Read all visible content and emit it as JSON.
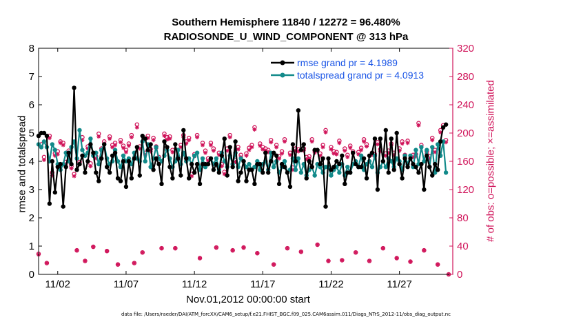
{
  "titles": {
    "line1": "Southern Hemisphere 11840 / 12272 = 96.480%",
    "line2": "RADIOSONDE_U_WIND_COMPONENT @ 313 hPa"
  },
  "axes": {
    "xlabel": "Nov.01,2012 00:00:00 start",
    "ylabel_left": "rmse and totalspread",
    "ylabel_right": "# of obs: o=possible; ×=assimilated",
    "left_ticks": [
      "0",
      "1",
      "2",
      "3",
      "4",
      "5",
      "6",
      "7",
      "8"
    ],
    "right_ticks": [
      "0",
      "40",
      "80",
      "120",
      "160",
      "200",
      "240",
      "280",
      "320"
    ],
    "x_ticks": [
      "11/02",
      "11/07",
      "11/12",
      "11/17",
      "11/22",
      "11/27"
    ]
  },
  "footer": "data file: /Users/raeder/DAI/ATM_forcXX/CAM6_setup/f.e21.FHIST_BGC.f09_025.CAM6assim.011/Diags_NTrS_2012-11/obs_diag_output.nc",
  "colors": {
    "rmse": "#000000",
    "spread": "#128a8a",
    "obs": "#d0145a",
    "legend_text": "#1a55e6"
  },
  "chart_data": {
    "type": "line",
    "title": "Southern Hemisphere 11840 / 12272 = 96.480% RADIOSONDE_U_WIND_COMPONENT @ 313 hPa",
    "x_unit": "days since Nov.01,2012 00:00:00",
    "xlim": [
      0.6,
      30.9
    ],
    "ylim_left": [
      0,
      8
    ],
    "ylim_right": [
      0,
      320
    ],
    "legend_position": "top-right",
    "series": [
      {
        "name": "rmse grand pr = 4.1989",
        "axis": "left",
        "values": [
          4.9,
          5.0,
          5.0,
          4.9,
          2.5,
          4.0,
          2.9,
          3.8,
          3.9,
          2.4,
          3.8,
          4.3,
          3.9,
          6.6,
          3.7,
          3.9,
          4.2,
          3.6,
          4.0,
          4.6,
          4.3,
          3.6,
          3.3,
          4.1,
          4.6,
          3.8,
          3.6,
          4.2,
          4.3,
          3.4,
          3.3,
          4.0,
          3.1,
          4.0,
          3.4,
          4.1,
          4.5,
          3.5,
          4.9,
          4.8,
          4.4,
          4.6,
          3.7,
          4.1,
          3.9,
          3.2,
          4.7,
          4.5,
          3.8,
          3.4,
          4.6,
          4.1,
          3.5,
          5.1,
          4.1,
          3.4,
          3.9,
          3.6,
          3.9,
          3.2,
          3.9,
          3.9,
          3.9,
          4.1,
          3.7,
          3.9,
          3.6,
          4.2,
          4.8,
          3.5,
          4.5,
          3.8,
          4.7,
          3.3,
          3.6,
          4.0,
          3.3,
          3.7,
          3.7,
          3.2,
          3.9,
          3.9,
          3.6,
          4.3,
          3.6,
          4.0,
          4.3,
          4.2,
          3.2,
          3.9,
          3.8,
          3.6,
          3.1,
          4.6,
          4.0,
          5.8,
          4.4,
          4.6,
          3.4,
          4.0,
          3.8,
          4.4,
          4.4,
          3.9,
          4.1,
          2.4,
          4.1,
          3.7,
          3.8,
          4.0,
          3.9,
          4.2,
          3.2,
          3.6,
          3.6,
          4.3,
          3.9,
          3.8,
          3.8,
          4.1,
          3.4,
          4.2,
          4.3,
          4.8,
          3.0,
          4.8,
          4.0,
          5.1,
          3.6,
          4.8,
          3.7,
          5.0,
          3.9,
          3.4,
          4.1,
          3.8,
          4.1,
          3.9,
          3.8,
          3.6,
          3.9,
          3.0,
          4.2,
          3.8,
          3.5,
          3.9,
          3.7,
          4.7,
          5.2,
          5.3
        ],
        "x_start": 0.6,
        "x_step": 0.2
      },
      {
        "name": "totalspread grand pr = 4.0913",
        "axis": "left",
        "values": [
          4.6,
          4.5,
          4.7,
          4.5,
          4.0,
          4.6,
          4.4,
          3.9,
          3.7,
          3.9,
          4.3,
          4.0,
          4.5,
          4.7,
          4.1,
          5.1,
          4.4,
          4.2,
          4.3,
          4.8,
          4.2,
          4.3,
          3.9,
          4.4,
          4.6,
          4.1,
          3.9,
          4.0,
          4.4,
          4.0,
          3.8,
          4.2,
          4.0,
          4.1,
          3.9,
          4.3,
          4.1,
          4.0,
          4.7,
          4.0,
          4.6,
          3.8,
          4.1,
          4.5,
          4.1,
          4.0,
          4.2,
          4.4,
          4.1,
          3.8,
          4.0,
          4.4,
          3.9,
          4.3,
          4.0,
          4.1,
          3.9,
          4.2,
          4.3,
          3.7,
          4.1,
          3.8,
          3.9,
          4.1,
          3.9,
          4.1,
          3.7,
          4.3,
          4.0,
          3.8,
          4.2,
          3.9,
          4.3,
          3.8,
          4.1,
          4.0,
          3.8,
          3.9,
          3.7,
          3.8,
          4.0,
          3.7,
          3.9,
          4.0,
          3.7,
          4.3,
          3.8,
          4.0,
          3.6,
          3.8,
          4.0,
          3.6,
          3.7,
          4.1,
          3.7,
          4.1,
          3.6,
          3.9,
          3.5,
          3.7,
          3.8,
          3.5,
          3.9,
          3.8,
          3.6,
          3.8,
          3.8,
          3.5,
          3.7,
          3.8,
          3.6,
          3.9,
          3.5,
          3.8,
          3.6,
          3.9,
          4.0,
          3.8,
          4.2,
          3.7,
          3.9,
          4.0,
          3.8,
          4.2,
          3.6,
          3.8,
          4.0,
          3.8,
          4.1,
          4.0,
          3.8,
          4.1,
          4.0,
          3.7,
          4.2,
          3.9,
          4.2,
          3.8,
          4.4,
          3.9,
          4.5,
          4.0,
          4.4,
          3.8,
          4.5,
          3.6,
          4.6,
          4.2,
          4.7,
          3.6
        ],
        "x_start": 0.6,
        "x_step": 0.2
      },
      {
        "name": "possible obs (o)",
        "axis": "right",
        "values": [
          29,
          184,
          166,
          16,
          196,
          144,
          171,
          174,
          188,
          186,
          159,
          175,
          153,
          142,
          34,
          159,
          194,
          19,
          181,
          157,
          39,
          167,
          199,
          178,
          188,
          33,
          195,
          183,
          186,
          14,
          190,
          182,
          176,
          185,
          197,
          16,
          212,
          181,
          31,
          172,
          196,
          177,
          193,
          181,
          166,
          37,
          199,
          194,
          195,
          176,
          37,
          166,
          183,
          197,
          188,
          193,
          142,
          170,
          197,
          23,
          186,
          175,
          164,
          186,
          178,
          38,
          172,
          156,
          145,
          178,
          197,
          34,
          162,
          180,
          169,
          38,
          171,
          179,
          183,
          208,
          30,
          185,
          180,
          178,
          176,
          190,
          14,
          183,
          167,
          174,
          191,
          37,
          172,
          151,
          178,
          177,
          32,
          178,
          166,
          167,
          191,
          175,
          42,
          171,
          183,
          204,
          19,
          180,
          174,
          173,
          189,
          20,
          178,
          169,
          182,
          174,
          31,
          173,
          179,
          191,
          184,
          19,
          172,
          170,
          187,
          177,
          37,
          171,
          175,
          185,
          172,
          23,
          178,
          188,
          169,
          189,
          18,
          169,
          170,
          214,
          183,
          34,
          174,
          167,
          193,
          176,
          14,
          204,
          211,
          190,
          0
        ],
        "x_start": 0.6,
        "x_step": 0.2
      },
      {
        "name": "assimilated obs (×)",
        "axis": "right",
        "values": [
          28,
          180,
          162,
          16,
          193,
          140,
          168,
          170,
          186,
          183,
          156,
          172,
          150,
          139,
          34,
          156,
          190,
          19,
          178,
          153,
          39,
          164,
          195,
          175,
          185,
          33,
          192,
          180,
          183,
          14,
          187,
          179,
          173,
          182,
          194,
          16,
          208,
          178,
          31,
          169,
          193,
          174,
          190,
          178,
          163,
          37,
          196,
          191,
          192,
          173,
          37,
          163,
          180,
          194,
          185,
          190,
          139,
          167,
          194,
          23,
          183,
          172,
          161,
          183,
          175,
          38,
          169,
          153,
          142,
          175,
          194,
          34,
          159,
          177,
          166,
          38,
          168,
          176,
          180,
          205,
          30,
          182,
          177,
          175,
          173,
          187,
          14,
          180,
          164,
          171,
          188,
          37,
          169,
          148,
          175,
          174,
          32,
          175,
          163,
          164,
          188,
          172,
          42,
          168,
          180,
          201,
          19,
          177,
          171,
          170,
          186,
          20,
          175,
          166,
          179,
          171,
          31,
          170,
          176,
          188,
          181,
          19,
          169,
          167,
          184,
          174,
          37,
          168,
          172,
          182,
          169,
          23,
          175,
          185,
          166,
          186,
          18,
          166,
          167,
          211,
          180,
          34,
          171,
          164,
          190,
          173,
          14,
          201,
          208,
          187,
          0
        ],
        "x_start": 0.6,
        "x_step": 0.2
      }
    ]
  }
}
